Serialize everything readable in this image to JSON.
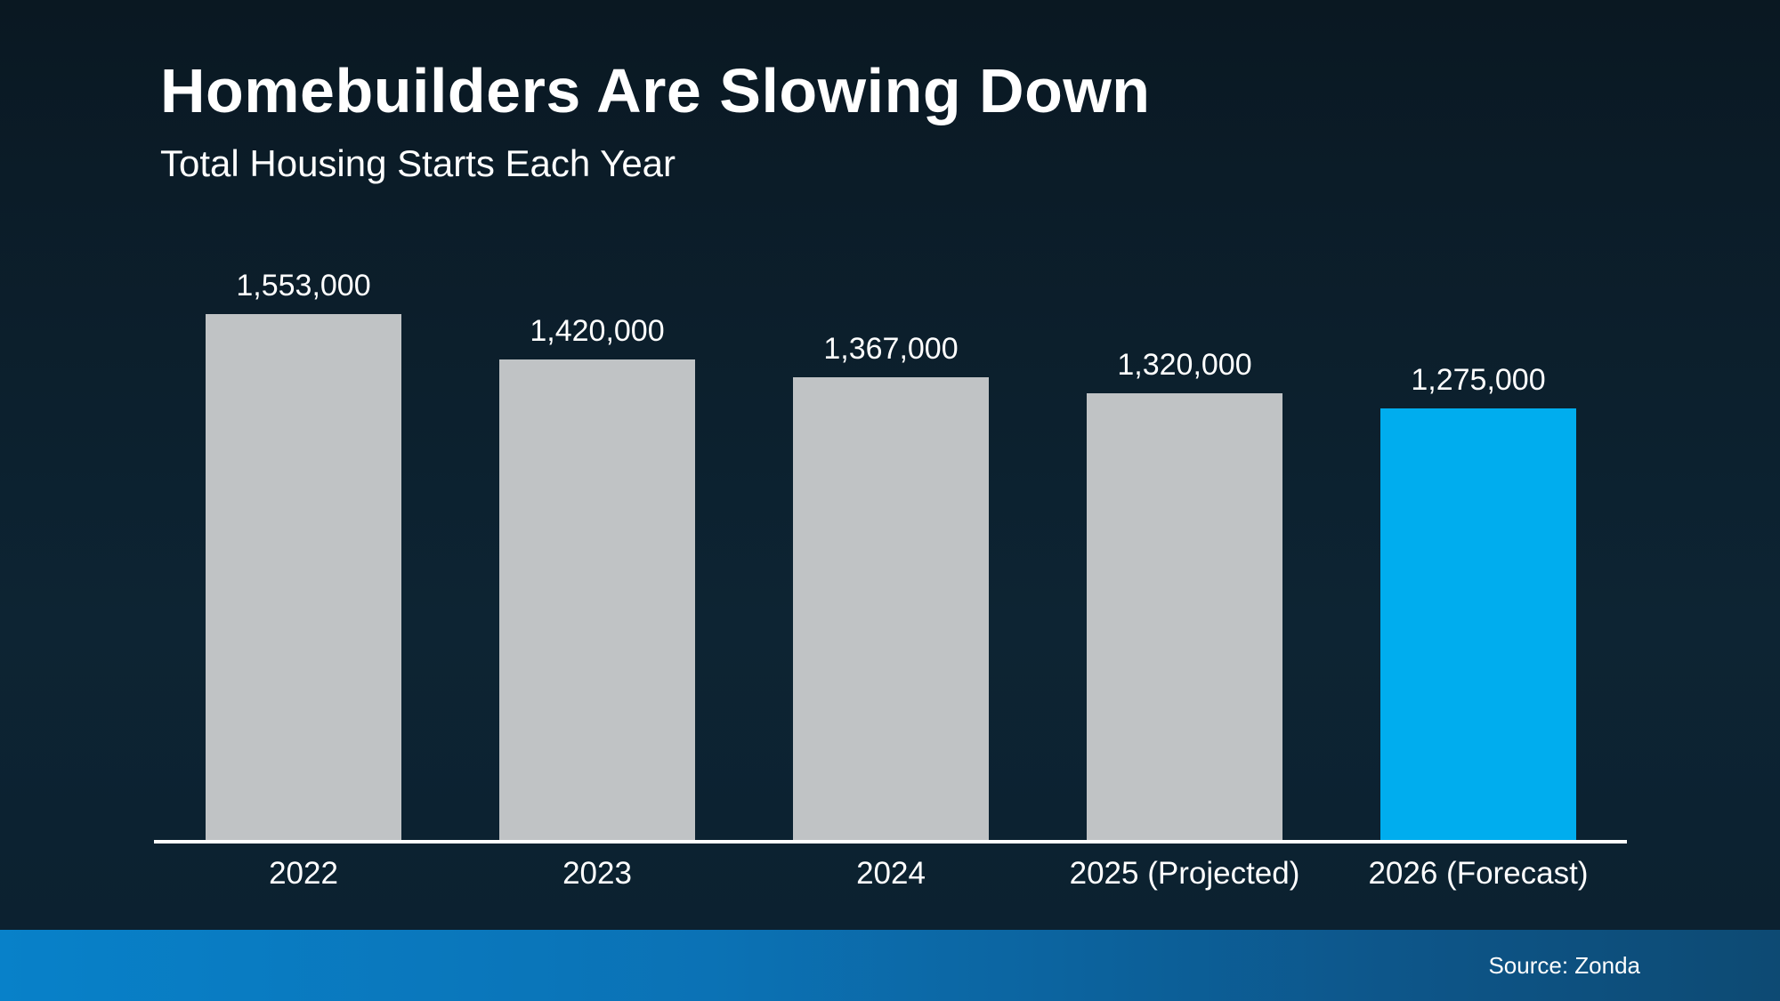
{
  "header": {
    "title": "Homebuilders Are Slowing Down",
    "subtitle": "Total Housing Starts Each Year"
  },
  "footer": {
    "source_label": "Source: Zonda"
  },
  "colors": {
    "background_top": "#0a1822",
    "background_bottom": "#0c2130",
    "bar_default": "#c0c3c5",
    "bar_highlight": "#00adee",
    "axis_line": "#ffffff",
    "text": "#ffffff",
    "footer_band_left": "#0881c9",
    "footer_band_right": "#0d4a73"
  },
  "chart_data": {
    "type": "bar",
    "title": "Homebuilders Are Slowing Down",
    "subtitle": "Total Housing Starts Each Year",
    "categories": [
      "2022",
      "2023",
      "2024",
      "2025 (Projected)",
      "2026 (Forecast)"
    ],
    "values": [
      1553000,
      1420000,
      1367000,
      1320000,
      1275000
    ],
    "value_labels": [
      "1,553,000",
      "1,420,000",
      "1,367,000",
      "1,320,000",
      "1,275,000"
    ],
    "xlabel": "",
    "ylabel": "",
    "ylim": [
      0,
      1553000
    ],
    "grid": false,
    "legend": false,
    "highlight_index": 4,
    "highlight_meaning": "forecast year bar shown in blue",
    "source": "Source: Zonda"
  }
}
